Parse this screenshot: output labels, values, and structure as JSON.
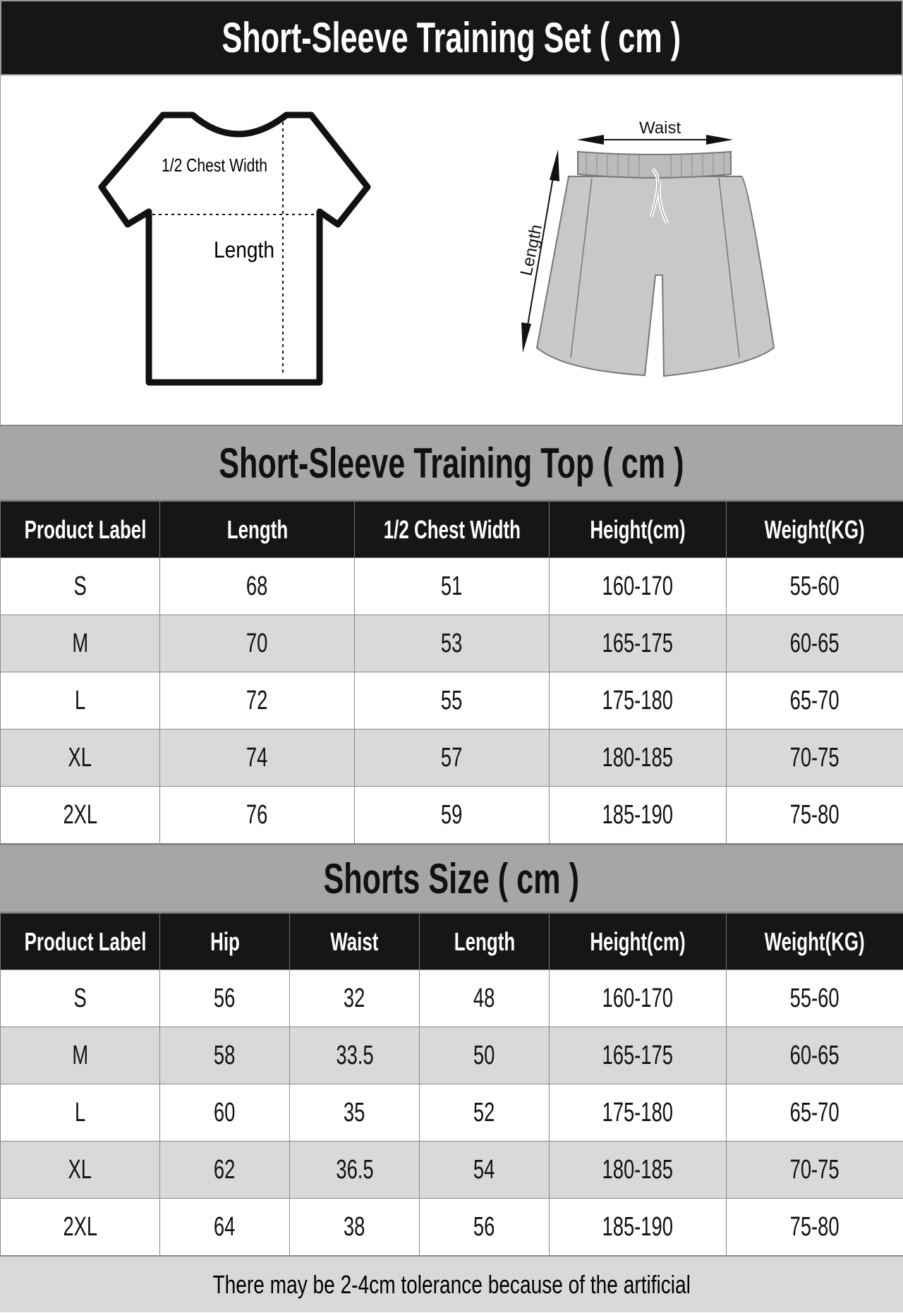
{
  "header": {
    "title": "Short-Sleeve Training Set ( cm )"
  },
  "diagram": {
    "shirt_chest_label": "1/2 Chest Width",
    "shirt_length_label": "Length",
    "shorts_waist_label": "Waist",
    "shorts_length_label": "Length"
  },
  "top_table": {
    "title": "Short-Sleeve Training Top ( cm )",
    "columns": [
      "Product Label",
      "Length",
      "1/2 Chest Width",
      "Height(cm)",
      "Weight(KG)"
    ],
    "rows": [
      [
        "S",
        "68",
        "51",
        "160-170",
        "55-60"
      ],
      [
        "M",
        "70",
        "53",
        "165-175",
        "60-65"
      ],
      [
        "L",
        "72",
        "55",
        "175-180",
        "65-70"
      ],
      [
        "XL",
        "74",
        "57",
        "180-185",
        "70-75"
      ],
      [
        "2XL",
        "76",
        "59",
        "185-190",
        "75-80"
      ]
    ]
  },
  "shorts_table": {
    "title": "Shorts Size ( cm )",
    "columns": [
      "Product Label",
      "Hip",
      "Waist",
      "Length",
      "Height(cm)",
      "Weight(KG)"
    ],
    "rows": [
      [
        "S",
        "56",
        "32",
        "48",
        "160-170",
        "55-60"
      ],
      [
        "M",
        "58",
        "33.5",
        "50",
        "165-175",
        "60-65"
      ],
      [
        "L",
        "60",
        "35",
        "52",
        "175-180",
        "65-70"
      ],
      [
        "XL",
        "62",
        "36.5",
        "54",
        "180-185",
        "70-75"
      ],
      [
        "2XL",
        "64",
        "38",
        "56",
        "185-190",
        "75-80"
      ]
    ]
  },
  "footer": {
    "note": "There may be 2-4cm tolerance because of the artificial"
  }
}
